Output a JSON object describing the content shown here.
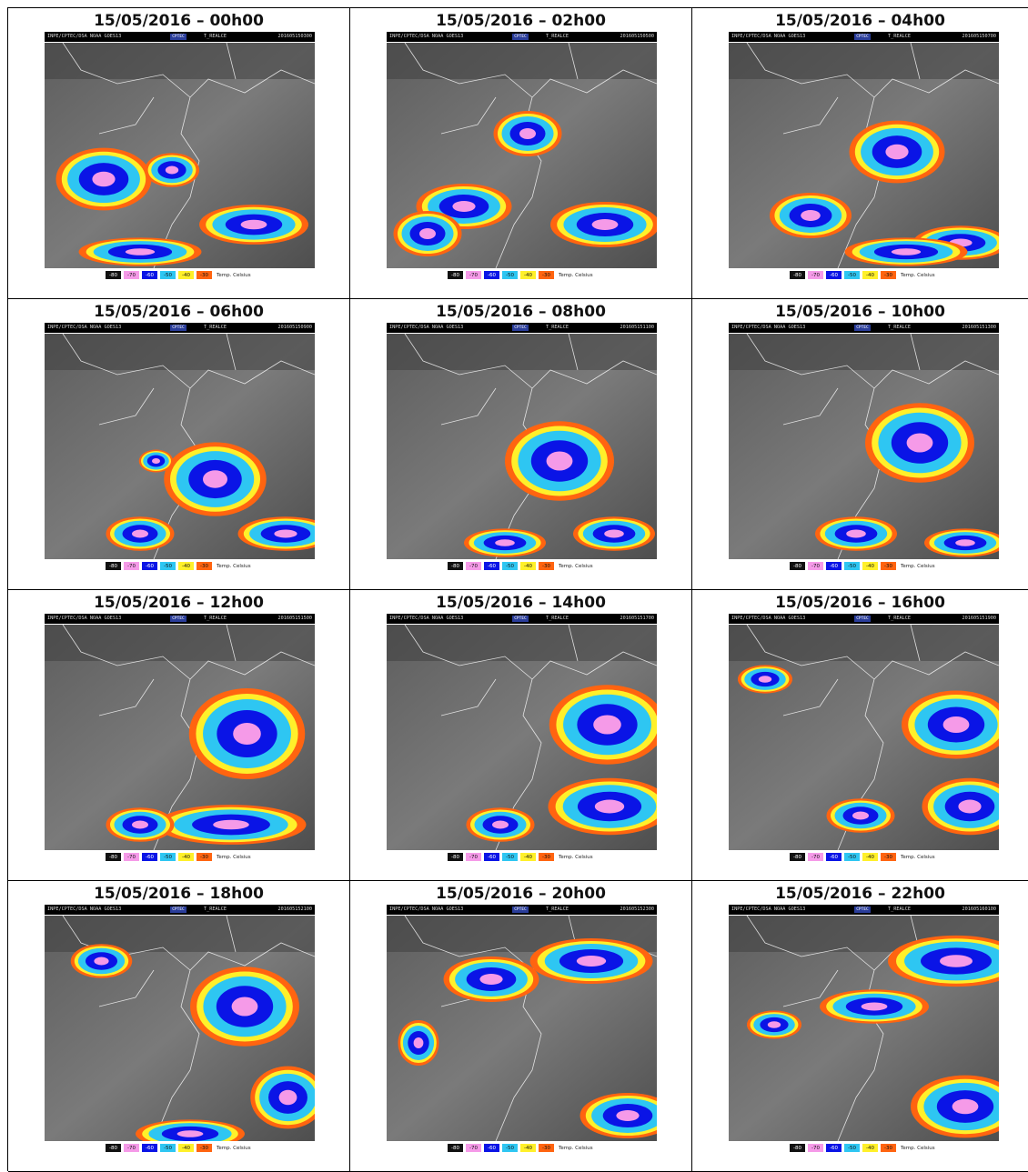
{
  "panels": [
    {
      "title": "15/05/2016 – 00h00",
      "stamp": "201605150300"
    },
    {
      "title": "15/05/2016 – 02h00",
      "stamp": "201605150500"
    },
    {
      "title": "15/05/2016 – 04h00",
      "stamp": "201605150700"
    },
    {
      "title": "15/05/2016 – 06h00",
      "stamp": "201605150900"
    },
    {
      "title": "15/05/2016 – 08h00",
      "stamp": "201605151100"
    },
    {
      "title": "15/05/2016 – 10h00",
      "stamp": "201605151300"
    },
    {
      "title": "15/05/2016 – 12h00",
      "stamp": "201605151500"
    },
    {
      "title": "15/05/2016 – 14h00",
      "stamp": "201605151700"
    },
    {
      "title": "15/05/2016 – 16h00",
      "stamp": "201605151900"
    },
    {
      "title": "15/05/2016 – 18h00",
      "stamp": "201605152100"
    },
    {
      "title": "15/05/2016 – 20h00",
      "stamp": "201605152300"
    },
    {
      "title": "15/05/2016 – 22h00",
      "stamp": "201605160100"
    }
  ],
  "header": {
    "source": "INPE/CPTEC/DSA NOAA GOES13",
    "logo": "CPTEC",
    "product": "T_REALCE"
  },
  "legend": {
    "labels": [
      "-80",
      "-70",
      "-60",
      "-50",
      "-40",
      "-30"
    ],
    "colors": [
      "#111111",
      "#f59ae8",
      "#0a14e6",
      "#2ec6f2",
      "#fff02a",
      "#ff6410"
    ],
    "unit": "Temp. Celsius"
  }
}
